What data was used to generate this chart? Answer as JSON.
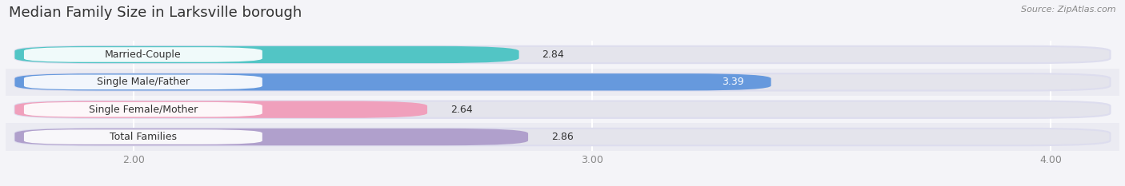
{
  "title": "Median Family Size in Larksville borough",
  "source_text": "Source: ZipAtlas.com",
  "categories": [
    "Married-Couple",
    "Single Male/Father",
    "Single Female/Mother",
    "Total Families"
  ],
  "values": [
    2.84,
    3.39,
    2.64,
    2.86
  ],
  "bar_colors": [
    "#52c5c5",
    "#6699dd",
    "#f0a0bc",
    "#b0a0cc"
  ],
  "value_label_colors": [
    "#444444",
    "#ffffff",
    "#444444",
    "#444444"
  ],
  "xlim_min": 1.72,
  "xlim_max": 4.15,
  "xstart": 1.72,
  "xticks": [
    2.0,
    3.0,
    4.0
  ],
  "xtick_labels": [
    "2.00",
    "3.00",
    "4.00"
  ],
  "bar_height": 0.62,
  "figsize": [
    14.06,
    2.33
  ],
  "dpi": 100,
  "background_color": "#f4f4f8",
  "bar_bg_color": "#e4e4ec",
  "stripe_color": "#ebebf2",
  "title_fontsize": 13,
  "label_fontsize": 9,
  "value_fontsize": 9,
  "tick_fontsize": 9,
  "title_color": "#333333",
  "source_color": "#888888",
  "tick_color": "#888888"
}
